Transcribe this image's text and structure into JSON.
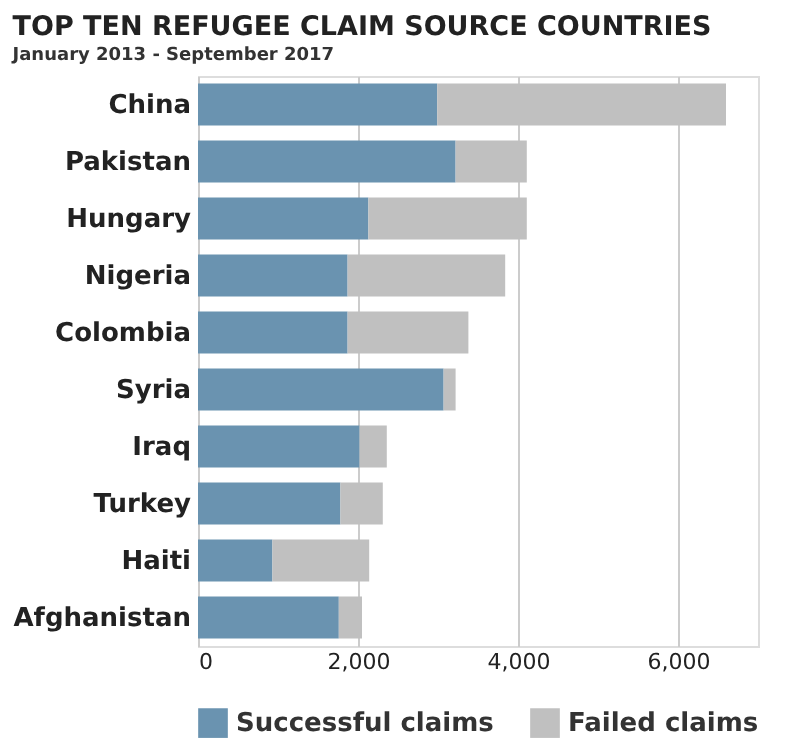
{
  "chart_data": {
    "type": "bar",
    "orientation": "horizontal",
    "stacked": true,
    "title": "TOP TEN REFUGEE CLAIM SOURCE COUNTRIES",
    "subtitle": "January 2013 - September 2017",
    "categories": [
      "China",
      "Pakistan",
      "Hungary",
      "Nigeria",
      "Colombia",
      "Syria",
      "Iraq",
      "Turkey",
      "Haiti",
      "Afghanistan"
    ],
    "series": [
      {
        "name": "Successful claims",
        "color": "#6a93b0",
        "values": [
          2990,
          3220,
          2130,
          1870,
          1870,
          3070,
          2020,
          1780,
          930,
          1760
        ]
      },
      {
        "name": "Failed claims",
        "color": "#c0c0c0",
        "values": [
          3610,
          890,
          1980,
          1970,
          1510,
          150,
          340,
          530,
          1210,
          290
        ]
      }
    ],
    "xlim": [
      0,
      7000
    ],
    "xticks": [
      {
        "value": 0,
        "label": "0"
      },
      {
        "value": 2000,
        "label": "2,000"
      },
      {
        "value": 4000,
        "label": "4,000"
      },
      {
        "value": 6000,
        "label": "6,000"
      }
    ],
    "grid": "x",
    "legend": "bottom"
  }
}
